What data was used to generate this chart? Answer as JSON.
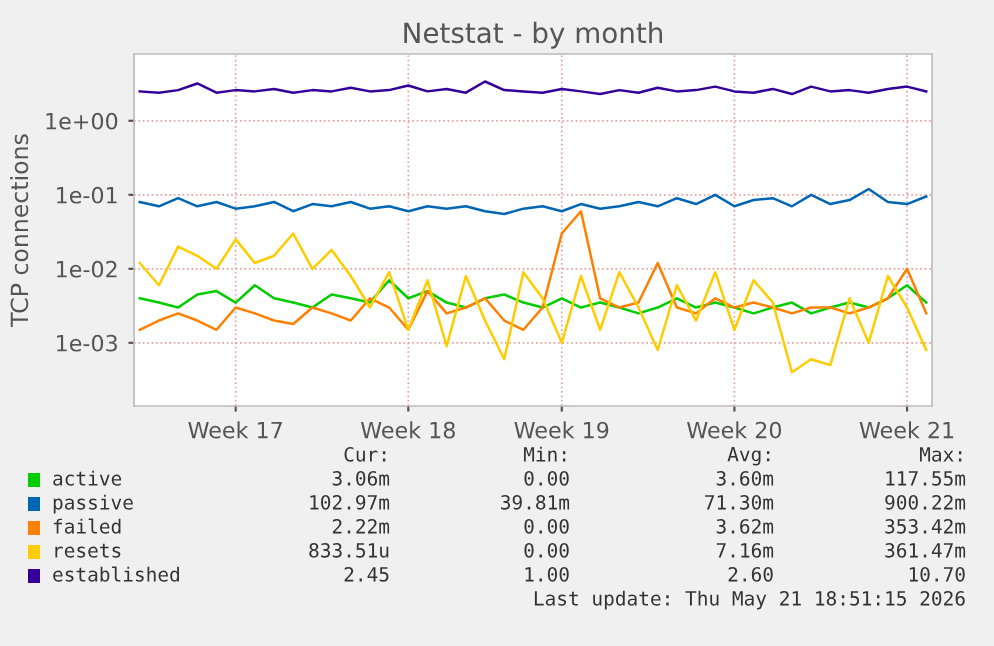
{
  "chart_data": {
    "type": "line",
    "title": "Netstat - by month",
    "ylabel": "TCP connections",
    "log": "y",
    "grid": true,
    "legend": "bottom",
    "marker": "none",
    "line_style": "solid",
    "ylim": [
      0.00014,
      8
    ],
    "yticks": [
      {
        "value": 0.001,
        "label": "1e-03"
      },
      {
        "value": 0.01,
        "label": "1e-02"
      },
      {
        "value": 0.1,
        "label": "1e-01"
      },
      {
        "value": 1,
        "label": "1e+00"
      }
    ],
    "categories": [
      null,
      null,
      null,
      null,
      null,
      "Week 17",
      null,
      null,
      null,
      null,
      null,
      null,
      null,
      null,
      "Week 18",
      null,
      null,
      null,
      null,
      null,
      null,
      null,
      "Week 19",
      null,
      null,
      null,
      null,
      null,
      null,
      null,
      null,
      "Week 20",
      null,
      null,
      null,
      null,
      null,
      null,
      null,
      null,
      "Week 21",
      null
    ],
    "series": [
      {
        "name": "active",
        "color": "#00cc00",
        "values": [
          0.004,
          0.0035,
          0.003,
          0.0045,
          0.005,
          0.0035,
          0.006,
          0.004,
          0.0035,
          0.003,
          0.0045,
          0.004,
          0.0035,
          0.007,
          0.004,
          0.005,
          0.0035,
          0.003,
          0.004,
          0.0045,
          0.0035,
          0.003,
          0.004,
          0.003,
          0.0035,
          0.003,
          0.0025,
          0.003,
          0.004,
          0.003,
          0.0035,
          0.003,
          0.0025,
          0.003,
          0.0035,
          0.0025,
          0.003,
          0.0035,
          0.003,
          0.004,
          0.006,
          0.0035
        ]
      },
      {
        "name": "passive",
        "color": "#0066b3",
        "values": [
          0.08,
          0.07,
          0.09,
          0.07,
          0.08,
          0.065,
          0.07,
          0.08,
          0.06,
          0.075,
          0.07,
          0.08,
          0.065,
          0.07,
          0.06,
          0.07,
          0.065,
          0.07,
          0.06,
          0.055,
          0.065,
          0.07,
          0.06,
          0.075,
          0.065,
          0.07,
          0.08,
          0.07,
          0.09,
          0.075,
          0.1,
          0.07,
          0.085,
          0.09,
          0.07,
          0.1,
          0.075,
          0.085,
          0.12,
          0.08,
          0.075,
          0.095
        ]
      },
      {
        "name": "failed",
        "color": "#ff8000",
        "values": [
          0.0015,
          0.002,
          0.0025,
          0.002,
          0.0015,
          0.003,
          0.0025,
          0.002,
          0.0018,
          0.003,
          0.0025,
          0.002,
          0.004,
          0.003,
          0.0015,
          0.005,
          0.0025,
          0.003,
          0.004,
          0.002,
          0.0015,
          0.003,
          0.03,
          0.06,
          0.004,
          0.003,
          0.0035,
          0.012,
          0.003,
          0.0025,
          0.004,
          0.003,
          0.0035,
          0.003,
          0.0025,
          0.003,
          0.003,
          0.0025,
          0.003,
          0.004,
          0.01,
          0.0025
        ]
      },
      {
        "name": "resets",
        "color": "#ffcc00",
        "values": [
          0.012,
          0.006,
          0.02,
          0.015,
          0.01,
          0.025,
          0.012,
          0.015,
          0.03,
          0.01,
          0.018,
          0.008,
          0.003,
          0.009,
          0.0015,
          0.007,
          0.0009,
          0.008,
          0.002,
          0.0006,
          0.009,
          0.004,
          0.001,
          0.008,
          0.0015,
          0.009,
          0.003,
          0.0008,
          0.006,
          0.002,
          0.009,
          0.0015,
          0.007,
          0.0035,
          0.0004,
          0.0006,
          0.0005,
          0.004,
          0.001,
          0.008,
          0.003,
          0.0008
        ]
      },
      {
        "name": "established",
        "color": "#330099",
        "values": [
          2.5,
          2.4,
          2.6,
          3.2,
          2.4,
          2.6,
          2.5,
          2.7,
          2.4,
          2.6,
          2.5,
          2.8,
          2.5,
          2.6,
          3.0,
          2.5,
          2.7,
          2.4,
          3.4,
          2.6,
          2.5,
          2.4,
          2.7,
          2.5,
          2.3,
          2.6,
          2.4,
          2.8,
          2.5,
          2.6,
          2.9,
          2.5,
          2.4,
          2.7,
          2.3,
          2.9,
          2.5,
          2.6,
          2.4,
          2.7,
          2.9,
          2.5
        ]
      }
    ],
    "annotations": [
      "Cur:",
      "Min:",
      "Avg:",
      "Max:",
      "3.06m",
      "0.00",
      "3.60m",
      "117.55m",
      "102.97m",
      "39.81m",
      "71.30m",
      "900.22m",
      "2.22m",
      "0.00",
      "3.62m",
      "353.42m",
      "833.51u",
      "0.00",
      "7.16m",
      "361.47m",
      "2.45",
      "1.00",
      "2.60",
      "10.70",
      "Last update: Thu May 21 18:51:15 2026"
    ]
  }
}
